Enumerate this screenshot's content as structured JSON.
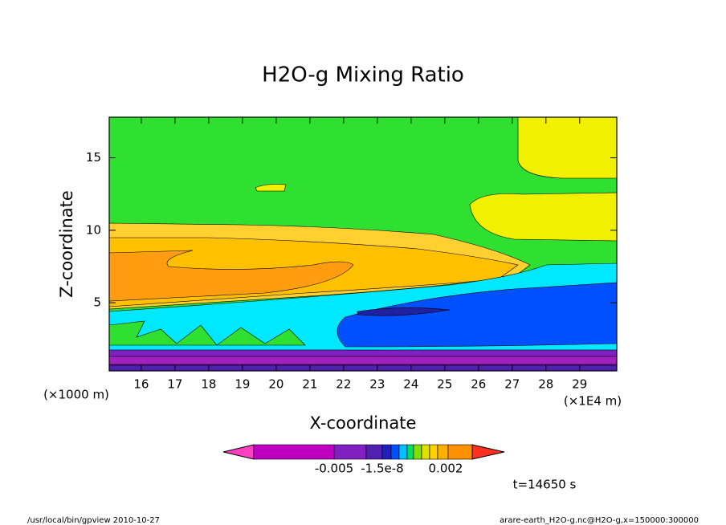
{
  "chart_data": {
    "type": "contour",
    "title": "H2O-g Mixing Ratio",
    "x_label": "X-coordinate",
    "y_label": "Z-coordinate",
    "x_unit": "(×1E4 m)",
    "y_unit": "(×1000 m)",
    "xlim": [
      15.05,
      30.1
    ],
    "ylim": [
      0.3,
      17.8
    ],
    "xticks": [
      16,
      17,
      18,
      19,
      20,
      21,
      22,
      23,
      24,
      25,
      26,
      27,
      28,
      29
    ],
    "yticks": [
      5,
      10,
      15
    ],
    "time_label": "t=14650 s",
    "colorbar": {
      "colors": [
        "#ff40c0",
        "#c000c0",
        "#8020c0",
        "#5020b0",
        "#2020c0",
        "#0050ff",
        "#00c0ff",
        "#00e060",
        "#80e000",
        "#e0e000",
        "#ffd000",
        "#ffb000",
        "#ff9000",
        "#ff3020"
      ],
      "labels": [
        "-0.005",
        "-1.5e-8",
        "0.002"
      ]
    },
    "footer_left": "/usr/local/bin/gpview  2010-10-27",
    "footer_right": "arare-earth_H2O-g.nc@H2O-g,x=150000:300000"
  }
}
